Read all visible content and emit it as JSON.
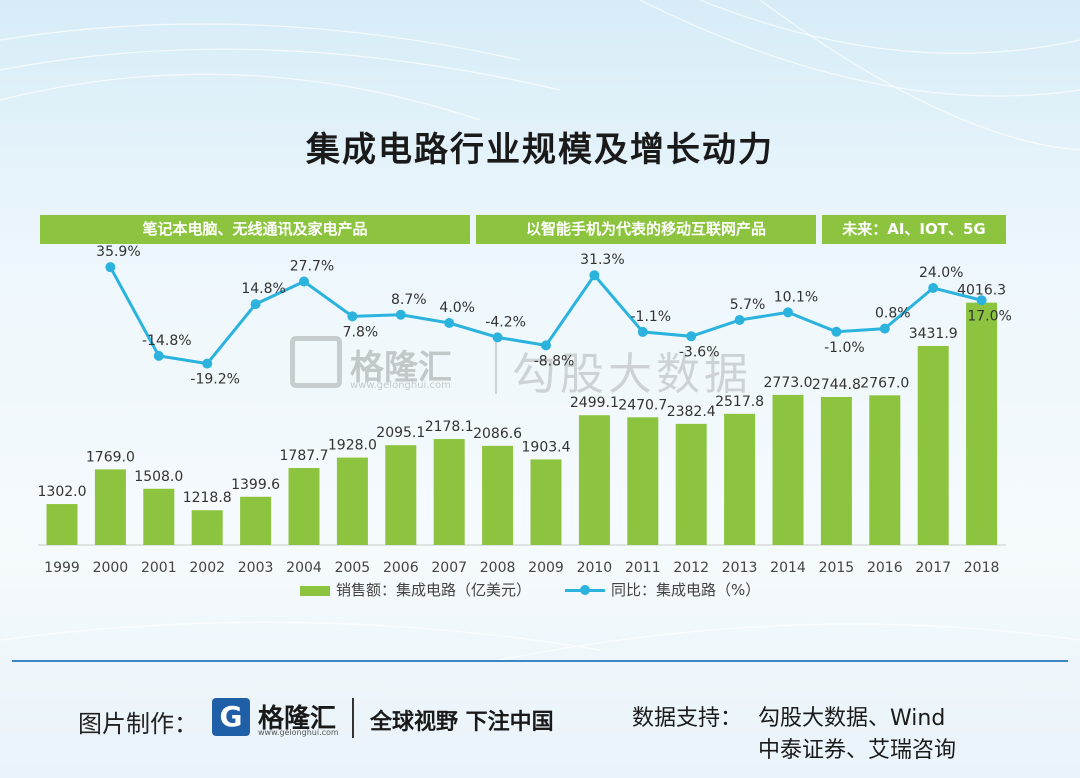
{
  "title": "集成电路行业规模及增长动力",
  "phases": [
    {
      "label": "笔记本电脑、无线通讯及家电产品"
    },
    {
      "label": "以智能手机为代表的移动互联网产品"
    },
    {
      "label": "未来：AI、IOT、5G"
    }
  ],
  "colors": {
    "bar": "#8cc43f",
    "line": "#2bb3de",
    "phase": "#8cc43f",
    "divider": "#3d86c6"
  },
  "chart_data": {
    "type": "bar",
    "categories": [
      "1999",
      "2000",
      "2001",
      "2002",
      "2003",
      "2004",
      "2005",
      "2006",
      "2007",
      "2008",
      "2009",
      "2010",
      "2011",
      "2012",
      "2013",
      "2014",
      "2015",
      "2016",
      "2017",
      "2018"
    ],
    "series": [
      {
        "name": "销售额：集成电路（亿美元）",
        "type": "bar",
        "values": [
          1302.0,
          1769.0,
          1508.0,
          1218.8,
          1399.6,
          1787.7,
          1928.0,
          2095.1,
          2178.1,
          2086.6,
          1903.4,
          2499.1,
          2470.7,
          2382.4,
          2517.8,
          2773.0,
          2744.8,
          2767.0,
          3431.9,
          4016.3
        ],
        "labels": [
          "1302.0",
          "1769.0",
          "1508.0",
          "1218.8",
          "1399.6",
          "1787.7",
          "1928.0",
          "2095.1",
          "2178.1",
          "2086.6",
          "1903.4",
          "2499.1",
          "2470.7",
          "2382.4",
          "2517.8",
          "2773.0",
          "2744.8",
          "2767.0",
          "3431.9",
          "4016.3"
        ]
      },
      {
        "name": "同比：集成电路（%）",
        "type": "line",
        "values": [
          null,
          35.9,
          -14.8,
          -19.2,
          14.8,
          27.7,
          7.8,
          8.7,
          4.0,
          -4.2,
          -8.8,
          31.3,
          -1.1,
          -3.6,
          5.7,
          10.1,
          -1.0,
          0.8,
          24.0,
          17.0
        ],
        "labels": [
          "",
          "35.9%",
          "-14.8%",
          "-19.2%",
          "14.8%",
          "27.7%",
          "7.8%",
          "8.7%",
          "4.0%",
          "-4.2%",
          "-8.8%",
          "31.3%",
          "-1.1%",
          "-3.6%",
          "5.7%",
          "10.1%",
          "-1.0%",
          "0.8%",
          "24.0%",
          "17.0%"
        ]
      }
    ],
    "legend_position": "bottom",
    "grid": false
  },
  "legend": {
    "bar_label": "销售额：集成电路（亿美元）",
    "line_label": "同比：集成电路（%）"
  },
  "watermark": {
    "name": "格隆汇",
    "url": "www.gelonghui.com",
    "text": "勾股大数据"
  },
  "footer": {
    "credit_label": "图片制作：",
    "logo_letter": "G",
    "logo_name": "格隆汇",
    "logo_url": "www.gelonghui.com",
    "slogan": "全球视野 下注中国",
    "source_label": "数据支持：",
    "source_line1": "勾股大数据、Wind",
    "source_line2": "中泰证券、艾瑞咨询"
  }
}
